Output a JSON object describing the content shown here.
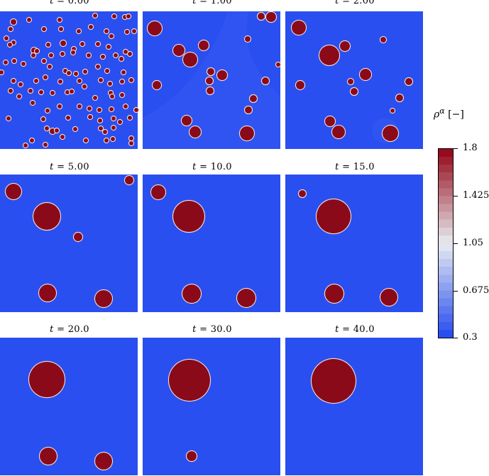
{
  "colors": {
    "background_low": "#2a4ff0",
    "droplet_high": "#8b0a1a",
    "interface": "#f2e0d8"
  },
  "panels": [
    {
      "time_label": "t = 0.00"
    },
    {
      "time_label": "t = 1.00"
    },
    {
      "time_label": "t = 2.00"
    },
    {
      "time_label": "t = 5.00"
    },
    {
      "time_label": "t = 10.0"
    },
    {
      "time_label": "t = 15.0"
    },
    {
      "time_label": "t = 20.0"
    },
    {
      "time_label": "t = 30.0"
    },
    {
      "time_label": "t = 40.0"
    }
  ],
  "colorbar": {
    "title": "ρ^α [−]",
    "title_symbol": "ρ",
    "title_superscript": "α",
    "title_unit": "[−]",
    "min": 0.3,
    "max": 1.8,
    "ticks": [
      "1.8",
      "1.425",
      "1.05",
      "0.675",
      "0.3"
    ]
  }
}
